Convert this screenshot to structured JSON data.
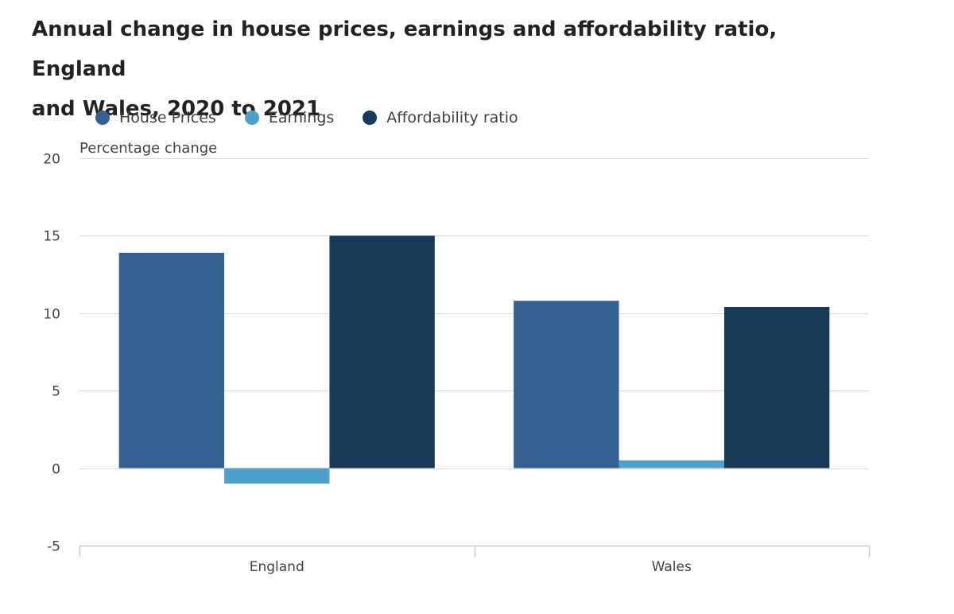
{
  "title_line1": "Annual change in house prices, earnings and affordability ratio, England",
  "title_line2": "and Wales, 2020 to 2021",
  "colors": {
    "house_prices": "#346092",
    "earnings": "#4fa1c9",
    "affordability": "#163a57",
    "grid": "#d9d9d9",
    "axis": "#c6c9d6"
  },
  "chart_data": {
    "type": "bar",
    "ylabel": "Percentage change",
    "categories": [
      "England",
      "Wales"
    ],
    "series": [
      {
        "name": "House Prices",
        "values": [
          13.9,
          10.8
        ]
      },
      {
        "name": "Earnings",
        "values": [
          -1.0,
          0.5
        ]
      },
      {
        "name": "Affordability ratio",
        "values": [
          15.0,
          10.4
        ]
      }
    ],
    "ylim": [
      -5,
      20
    ],
    "yticks": [
      -5,
      0,
      5,
      10,
      15,
      20
    ],
    "grid": true,
    "legend_position": "top-left"
  }
}
